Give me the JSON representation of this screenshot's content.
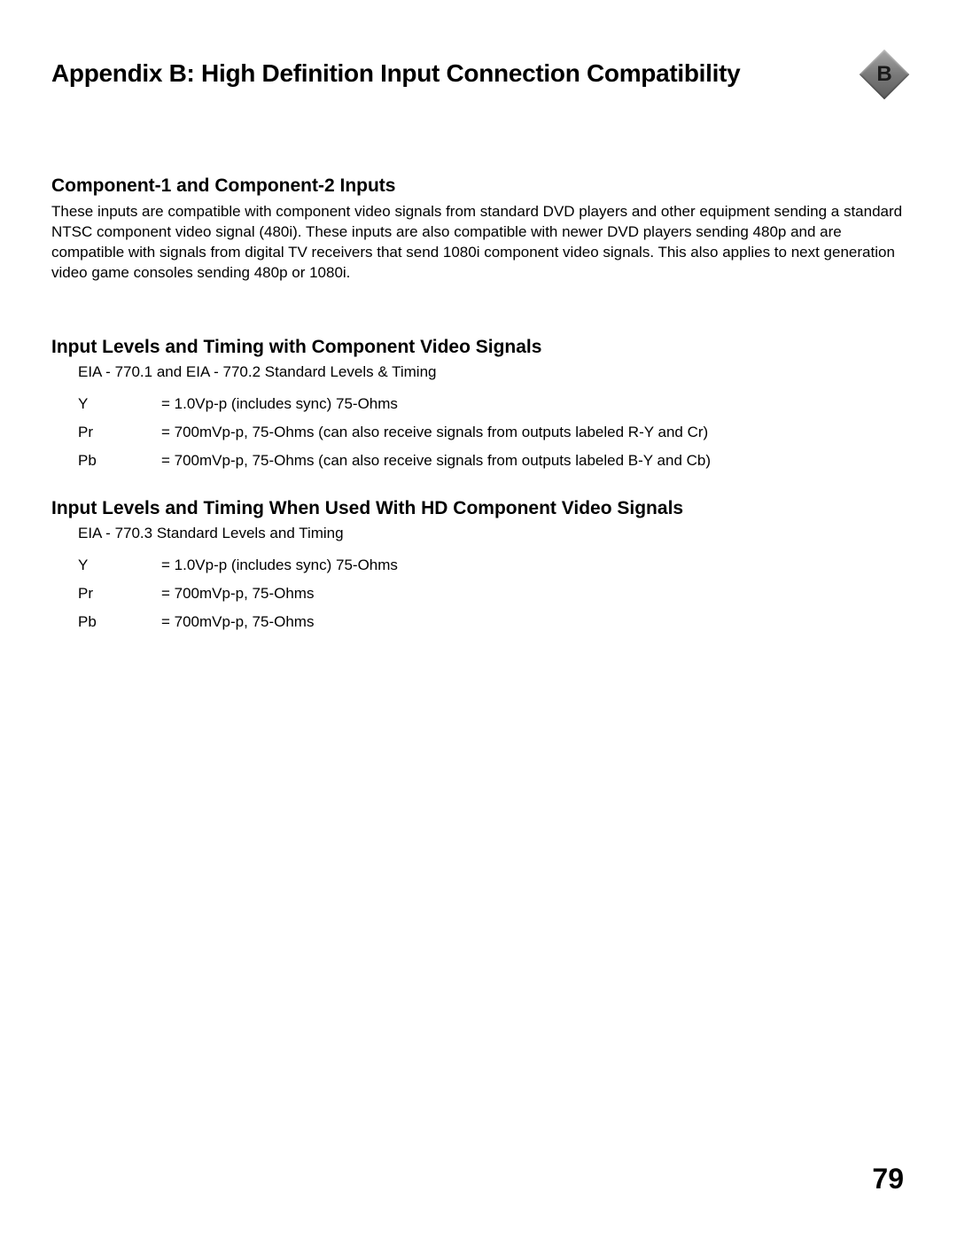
{
  "title": "Appendix B: High Definition Input Connection Compatibility",
  "badge": {
    "letter": "B"
  },
  "section1": {
    "heading": "Component-1 and Component-2 Inputs",
    "body": "These inputs are compatible with component video signals from standard DVD players and other equipment sending a standard NTSC component video signal (480i).  These inputs are also compatible with newer DVD players sending 480p and are compatible with signals from digital TV receivers that send 1080i component video signals.  This also applies to next generation video game consoles sending 480p or 1080i."
  },
  "section2": {
    "heading": "Input Levels and Timing with Component Video Signals",
    "note": "EIA - 770.1 and EIA - 770.2 Standard Levels & Timing",
    "rows": [
      {
        "label": "Y",
        "value": "= 1.0Vp-p (includes sync) 75-Ohms"
      },
      {
        "label": "Pr",
        "value": "= 700mVp-p, 75-Ohms (can also receive signals   from outputs labeled R-Y and Cr)"
      },
      {
        "label": "Pb",
        "value": "= 700mVp-p, 75-Ohms (can also receive signals from outputs labeled B-Y and Cb)"
      }
    ]
  },
  "section3": {
    "heading": "Input Levels and Timing When Used With HD Component Video Signals",
    "note": "EIA - 770.3 Standard Levels and Timing",
    "rows": [
      {
        "label": "Y",
        "value": "= 1.0Vp-p (includes sync) 75-Ohms"
      },
      {
        "label": "Pr",
        "value": "= 700mVp-p, 75-Ohms"
      },
      {
        "label": "Pb",
        "value": "= 700mVp-p,  75-Ohms"
      }
    ]
  },
  "pageNumber": "79"
}
